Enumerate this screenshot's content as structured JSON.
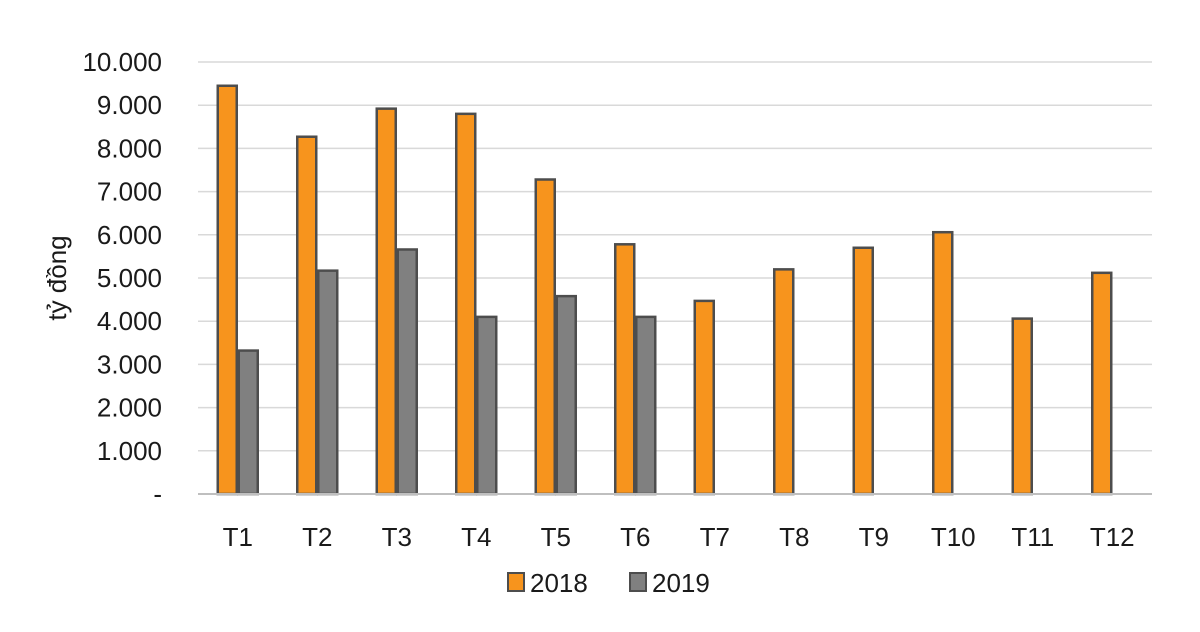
{
  "chart_data": {
    "type": "bar",
    "title": "",
    "xlabel": "",
    "ylabel": "tỷ đồng",
    "ylim": [
      0,
      10000
    ],
    "yticks": [
      0,
      1000,
      2000,
      3000,
      4000,
      5000,
      6000,
      7000,
      8000,
      9000,
      10000
    ],
    "ytick_labels": [
      "-",
      "1.000",
      "2.000",
      "3.000",
      "4.000",
      "5.000",
      "6.000",
      "7.000",
      "8.000",
      "9.000",
      "10.000"
    ],
    "categories": [
      "T1",
      "T2",
      "T3",
      "T4",
      "T5",
      "T6",
      "T7",
      "T8",
      "T9",
      "T10",
      "T11",
      "T12"
    ],
    "grid": true,
    "legend_position": "bottom",
    "series": [
      {
        "name": "2018",
        "color": "#F7941D",
        "values": [
          9450,
          8270,
          8920,
          8800,
          7280,
          5780,
          4470,
          5200,
          5700,
          6060,
          4060,
          5120
        ]
      },
      {
        "name": "2019",
        "color": "#808080",
        "values": [
          3320,
          5170,
          5660,
          4100,
          4580,
          4100,
          null,
          null,
          null,
          null,
          null,
          null
        ]
      }
    ]
  }
}
